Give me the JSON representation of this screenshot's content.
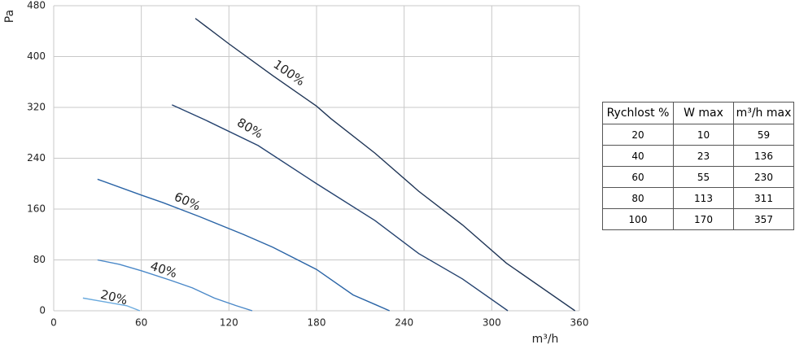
{
  "chart_data": {
    "type": "line",
    "x_label": "m³/h",
    "y_label": "Pa",
    "xlim": [
      0,
      360
    ],
    "ylim": [
      0,
      480
    ],
    "xticks": [
      0,
      60,
      120,
      180,
      240,
      300,
      360
    ],
    "yticks": [
      0,
      80,
      160,
      240,
      320,
      400,
      480
    ],
    "grid": true,
    "series": [
      {
        "name": "100%",
        "color": "#1f3556",
        "x": [
          97,
          120,
          150,
          180,
          190,
          220,
          250,
          280,
          310,
          357
        ],
        "values": [
          460,
          420,
          370,
          322,
          302,
          248,
          188,
          135,
          75,
          0
        ]
      },
      {
        "name": "80%",
        "color": "#24426f",
        "x": [
          81,
          104,
          140,
          180,
          220,
          250,
          280,
          311
        ],
        "values": [
          324,
          300,
          260,
          200,
          142,
          90,
          50,
          0
        ]
      },
      {
        "name": "60%",
        "color": "#2a64a6",
        "x": [
          30,
          60,
          75,
          100,
          130,
          150,
          180,
          205,
          220,
          230
        ],
        "values": [
          207,
          182,
          170,
          148,
          120,
          100,
          65,
          25,
          10,
          0
        ]
      },
      {
        "name": "40%",
        "color": "#4a88c8",
        "x": [
          30,
          45,
          60,
          80,
          95,
          110,
          125,
          136
        ],
        "values": [
          80,
          73,
          63,
          48,
          36,
          20,
          8,
          0
        ]
      },
      {
        "name": "20%",
        "color": "#6aaade",
        "x": [
          20,
          35,
          50,
          59
        ],
        "values": [
          20,
          14,
          8,
          0
        ]
      }
    ]
  },
  "table": {
    "header": [
      "Rychlost %",
      "W max",
      "m³/h max"
    ],
    "rows": [
      [
        20,
        10,
        59
      ],
      [
        40,
        23,
        136
      ],
      [
        60,
        55,
        230
      ],
      [
        80,
        113,
        311
      ],
      [
        100,
        170,
        357
      ]
    ]
  }
}
